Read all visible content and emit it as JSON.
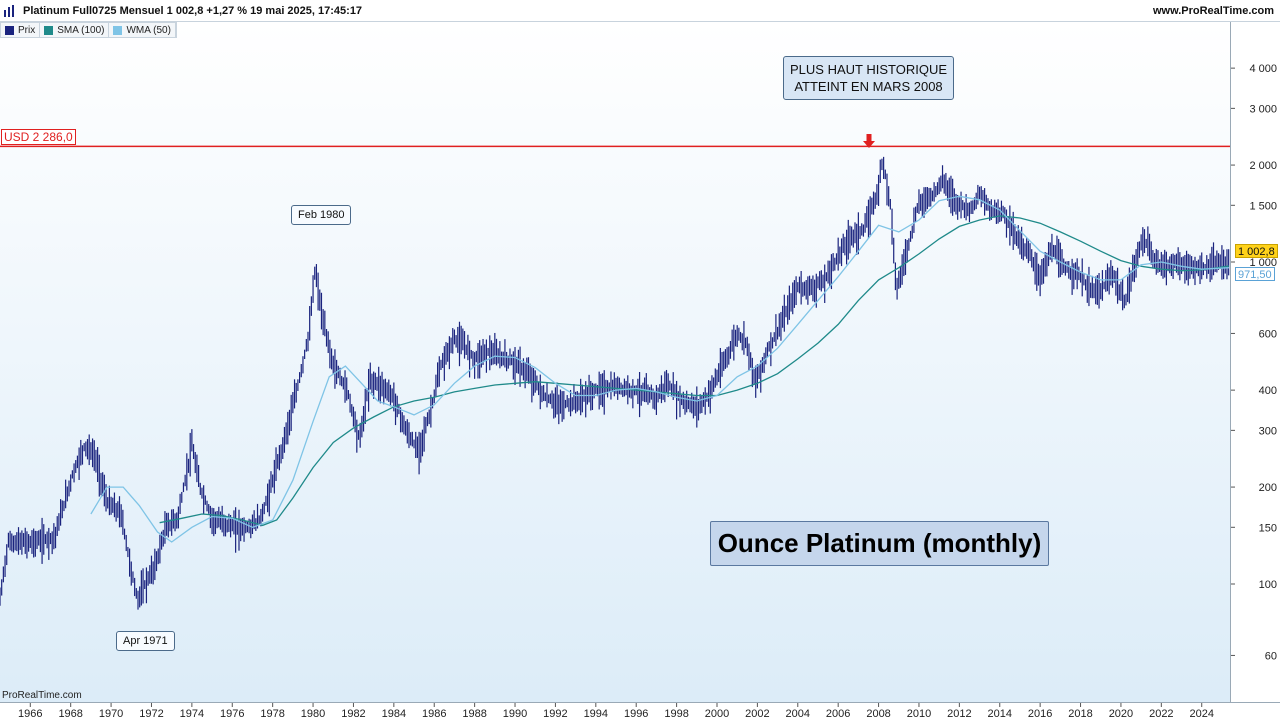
{
  "header": {
    "title": "Platinum Full0725 Mensuel 1 002,8 +1,27 % 19 mai 2025, 17:45:17",
    "site": "www.ProRealTime.com"
  },
  "legend": [
    {
      "label": "Prix",
      "color": "#1a237e"
    },
    {
      "label": "SMA (100)",
      "color": "#1f8a8a"
    },
    {
      "label": "WMA (50)",
      "color": "#7fc4e6"
    }
  ],
  "watermark": "ProRealTime.com",
  "reference_line": {
    "label": "USD 2 286,0",
    "value": 2286,
    "color": "#e02020"
  },
  "annotations": {
    "high_box": [
      "PLUS HAUT HISTORIQUE",
      "ATTEINT EN MARS 2008"
    ],
    "feb1980": "Feb 1980",
    "apr1971": "Apr 1971",
    "headline": "Ounce Platinum (monthly)"
  },
  "axis_tags": {
    "price": "1 002,8",
    "sma": "971,50"
  },
  "chart_data": {
    "type": "bar",
    "title": "Ounce Platinum (monthly)",
    "y_scale": "log",
    "ylim": [
      50,
      5000
    ],
    "xlim": [
      1964.5,
      2025.4
    ],
    "y_ticks": [
      {
        "v": 60,
        "label": "60"
      },
      {
        "v": 100,
        "label": "100"
      },
      {
        "v": 150,
        "label": "150"
      },
      {
        "v": 200,
        "label": "200"
      },
      {
        "v": 300,
        "label": "300"
      },
      {
        "v": 400,
        "label": "400"
      },
      {
        "v": 600,
        "label": "600"
      },
      {
        "v": 1000,
        "label": "1 000"
      },
      {
        "v": 1500,
        "label": "1 500"
      },
      {
        "v": 2000,
        "label": "2 000"
      },
      {
        "v": 3000,
        "label": "3 000"
      },
      {
        "v": 4000,
        "label": "4 000"
      }
    ],
    "x_ticks": [
      "1966",
      "1968",
      "1970",
      "1972",
      "1974",
      "1976",
      "1978",
      "1980",
      "1982",
      "1984",
      "1986",
      "1988",
      "1990",
      "1992",
      "1994",
      "1996",
      "1998",
      "2000",
      "2002",
      "2004",
      "2006",
      "2008",
      "2010",
      "2012",
      "2014",
      "2016",
      "2018",
      "2020",
      "2022",
      "2024"
    ],
    "price_series": {
      "name": "Prix",
      "points": [
        [
          1964.5,
          90
        ],
        [
          1964.9,
          135
        ],
        [
          1966,
          135
        ],
        [
          1967.2,
          140
        ],
        [
          1968.1,
          220
        ],
        [
          1968.7,
          270
        ],
        [
          1969.2,
          250
        ],
        [
          1969.8,
          180
        ],
        [
          1970.5,
          165
        ],
        [
          1971.0,
          110
        ],
        [
          1971.3,
          90
        ],
        [
          1972.2,
          115
        ],
        [
          1972.7,
          150
        ],
        [
          1973.3,
          160
        ],
        [
          1974.0,
          270
        ],
        [
          1974.4,
          200
        ],
        [
          1975.0,
          160
        ],
        [
          1975.6,
          155
        ],
        [
          1976.2,
          150
        ],
        [
          1976.8,
          150
        ],
        [
          1977.4,
          160
        ],
        [
          1977.8,
          190
        ],
        [
          1978.5,
          270
        ],
        [
          1979.2,
          400
        ],
        [
          1979.8,
          600
        ],
        [
          1980.1,
          950
        ],
        [
          1980.5,
          650
        ],
        [
          1981.0,
          480
        ],
        [
          1981.7,
          400
        ],
        [
          1982.3,
          280
        ],
        [
          1982.8,
          430
        ],
        [
          1983.3,
          420
        ],
        [
          1984.0,
          380
        ],
        [
          1984.6,
          300
        ],
        [
          1985.2,
          260
        ],
        [
          1985.8,
          340
        ],
        [
          1986.3,
          470
        ],
        [
          1987.0,
          580
        ],
        [
          1987.5,
          550
        ],
        [
          1988.0,
          500
        ],
        [
          1988.6,
          530
        ],
        [
          1989.2,
          510
        ],
        [
          1990.0,
          490
        ],
        [
          1990.8,
          440
        ],
        [
          1991.5,
          380
        ],
        [
          1992.3,
          360
        ],
        [
          1993.0,
          370
        ],
        [
          1994.0,
          400
        ],
        [
          1995.0,
          410
        ],
        [
          1996.0,
          400
        ],
        [
          1997.0,
          380
        ],
        [
          1997.5,
          420
        ],
        [
          1998.3,
          370
        ],
        [
          1999.0,
          355
        ],
        [
          1999.5,
          380
        ],
        [
          2000.3,
          480
        ],
        [
          2001.0,
          600
        ],
        [
          2001.5,
          560
        ],
        [
          2001.9,
          420
        ],
        [
          2002.5,
          530
        ],
        [
          2003.3,
          670
        ],
        [
          2004.0,
          840
        ],
        [
          2004.6,
          830
        ],
        [
          2005.3,
          870
        ],
        [
          2006.0,
          1050
        ],
        [
          2006.6,
          1200
        ],
        [
          2007.3,
          1270
        ],
        [
          2008.0,
          1700
        ],
        [
          2008.2,
          2100
        ],
        [
          2008.6,
          1500
        ],
        [
          2008.9,
          820
        ],
        [
          2009.5,
          1150
        ],
        [
          2010.0,
          1530
        ],
        [
          2010.6,
          1600
        ],
        [
          2011.2,
          1800
        ],
        [
          2011.8,
          1550
        ],
        [
          2012.5,
          1450
        ],
        [
          2013.0,
          1620
        ],
        [
          2013.6,
          1450
        ],
        [
          2014.2,
          1430
        ],
        [
          2014.8,
          1200
        ],
        [
          2015.4,
          1080
        ],
        [
          2016.0,
          900
        ],
        [
          2016.6,
          1100
        ],
        [
          2017.2,
          960
        ],
        [
          2017.8,
          930
        ],
        [
          2018.5,
          820
        ],
        [
          2019.0,
          820
        ],
        [
          2019.6,
          920
        ],
        [
          2020.2,
          740
        ],
        [
          2020.6,
          950
        ],
        [
          2021.1,
          1200
        ],
        [
          2021.7,
          1000
        ],
        [
          2022.3,
          980
        ],
        [
          2022.8,
          1000
        ],
        [
          2023.3,
          960
        ],
        [
          2023.9,
          950
        ],
        [
          2024.5,
          980
        ],
        [
          2025.35,
          1002.8
        ]
      ]
    },
    "sma_series": {
      "name": "SMA (100)",
      "points": [
        [
          1972.4,
          155
        ],
        [
          1973.5,
          160
        ],
        [
          1974.5,
          165
        ],
        [
          1975.5,
          163
        ],
        [
          1976.5,
          158
        ],
        [
          1977.5,
          152
        ],
        [
          1978.2,
          158
        ],
        [
          1979.0,
          185
        ],
        [
          1980.0,
          230
        ],
        [
          1981.0,
          275
        ],
        [
          1982.0,
          305
        ],
        [
          1983.0,
          330
        ],
        [
          1984.0,
          355
        ],
        [
          1985.0,
          370
        ],
        [
          1986.0,
          380
        ],
        [
          1987.0,
          395
        ],
        [
          1988.0,
          405
        ],
        [
          1989.0,
          415
        ],
        [
          1990.0,
          420
        ],
        [
          1991.0,
          425
        ],
        [
          1992.0,
          420
        ],
        [
          1993.0,
          415
        ],
        [
          1994.0,
          410
        ],
        [
          1995.0,
          405
        ],
        [
          1996.0,
          400
        ],
        [
          1997.0,
          395
        ],
        [
          1998.0,
          390
        ],
        [
          1999.0,
          385
        ],
        [
          2000.0,
          385
        ],
        [
          2001.0,
          400
        ],
        [
          2002.0,
          420
        ],
        [
          2003.0,
          450
        ],
        [
          2004.0,
          500
        ],
        [
          2005.0,
          560
        ],
        [
          2006.0,
          640
        ],
        [
          2007.0,
          760
        ],
        [
          2008.0,
          880
        ],
        [
          2009.0,
          960
        ],
        [
          2010.0,
          1060
        ],
        [
          2011.0,
          1180
        ],
        [
          2012.0,
          1290
        ],
        [
          2013.0,
          1350
        ],
        [
          2014.0,
          1390
        ],
        [
          2015.0,
          1370
        ],
        [
          2016.0,
          1320
        ],
        [
          2017.0,
          1240
        ],
        [
          2018.0,
          1160
        ],
        [
          2019.0,
          1080
        ],
        [
          2020.0,
          1010
        ],
        [
          2021.0,
          970
        ],
        [
          2022.0,
          950
        ],
        [
          2023.0,
          940
        ],
        [
          2024.0,
          945
        ],
        [
          2025.35,
          971.5
        ]
      ]
    },
    "wma_series": {
      "name": "WMA (50)",
      "points": [
        [
          1969.0,
          165
        ],
        [
          1969.8,
          200
        ],
        [
          1970.6,
          200
        ],
        [
          1971.4,
          175
        ],
        [
          1972.3,
          145
        ],
        [
          1973.0,
          135
        ],
        [
          1974.0,
          150
        ],
        [
          1975.0,
          162
        ],
        [
          1976.0,
          160
        ],
        [
          1977.0,
          150
        ],
        [
          1978.0,
          158
        ],
        [
          1979.0,
          210
        ],
        [
          1980.0,
          320
        ],
        [
          1980.8,
          440
        ],
        [
          1981.6,
          475
        ],
        [
          1982.4,
          420
        ],
        [
          1983.2,
          370
        ],
        [
          1984.0,
          355
        ],
        [
          1985.0,
          335
        ],
        [
          1986.0,
          360
        ],
        [
          1987.0,
          420
        ],
        [
          1988.0,
          475
        ],
        [
          1989.0,
          510
        ],
        [
          1990.0,
          505
        ],
        [
          1991.0,
          470
        ],
        [
          1992.0,
          420
        ],
        [
          1993.0,
          385
        ],
        [
          1994.0,
          385
        ],
        [
          1995.0,
          400
        ],
        [
          1996.0,
          405
        ],
        [
          1997.0,
          395
        ],
        [
          1998.0,
          380
        ],
        [
          1999.0,
          370
        ],
        [
          2000.0,
          385
        ],
        [
          2001.0,
          440
        ],
        [
          2002.0,
          475
        ],
        [
          2003.0,
          540
        ],
        [
          2004.0,
          640
        ],
        [
          2005.0,
          760
        ],
        [
          2006.0,
          900
        ],
        [
          2007.0,
          1080
        ],
        [
          2008.0,
          1300
        ],
        [
          2009.0,
          1240
        ],
        [
          2010.0,
          1350
        ],
        [
          2011.0,
          1550
        ],
        [
          2012.0,
          1600
        ],
        [
          2013.0,
          1560
        ],
        [
          2014.0,
          1450
        ],
        [
          2015.0,
          1250
        ],
        [
          2016.0,
          1080
        ],
        [
          2017.0,
          1000
        ],
        [
          2018.0,
          930
        ],
        [
          2019.0,
          880
        ],
        [
          2020.0,
          880
        ],
        [
          2021.0,
          980
        ],
        [
          2022.0,
          1000
        ],
        [
          2023.0,
          970
        ],
        [
          2024.0,
          950
        ],
        [
          2025.35,
          960
        ]
      ]
    }
  }
}
